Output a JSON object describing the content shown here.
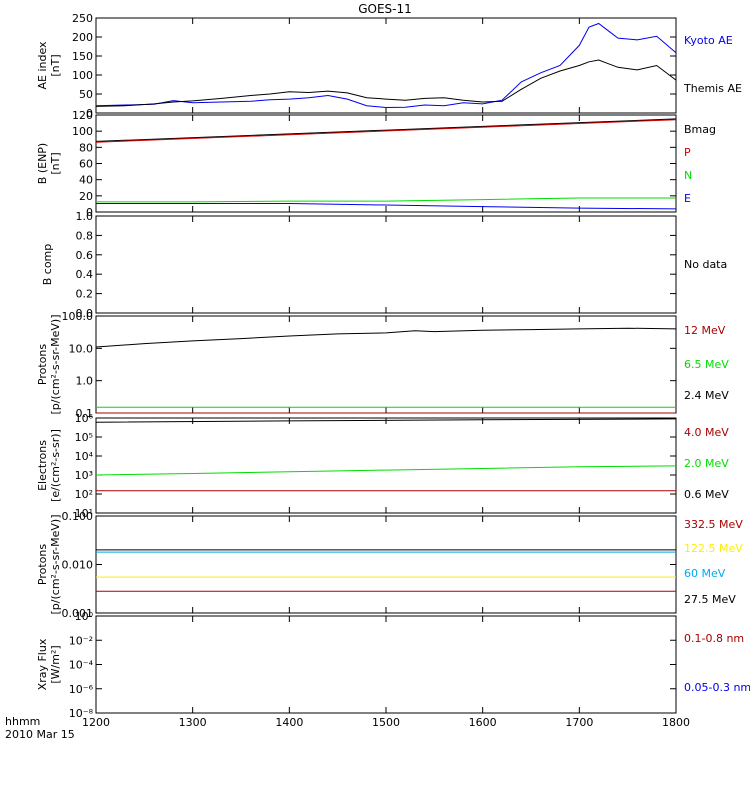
{
  "title": "GOES-11",
  "footer": {
    "time_label": "hhmm",
    "date_label": "2010 Mar 15"
  },
  "x_axis": {
    "min": 1200,
    "max": 1800,
    "ticks": [
      "1200",
      "1300",
      "1400",
      "1500",
      "1600",
      "1700",
      "1800"
    ]
  },
  "chart_data": [
    {
      "type": "line",
      "ylabel": [
        "AE index",
        "[nT]"
      ],
      "ylim": [
        0,
        260
      ],
      "yticks": [
        "0",
        "50",
        "100",
        "150",
        "200",
        "250"
      ],
      "series": [
        {
          "name": "Kyoto AE",
          "color": "#0000ee",
          "x": [
            1200,
            1230,
            1260,
            1280,
            1300,
            1330,
            1360,
            1380,
            1400,
            1420,
            1440,
            1460,
            1480,
            1500,
            1520,
            1540,
            1560,
            1580,
            1600,
            1620,
            1640,
            1660,
            1680,
            1700,
            1710,
            1720,
            1730,
            1740,
            1760,
            1780,
            1800
          ],
          "y": [
            20,
            22,
            24,
            34,
            28,
            30,
            32,
            36,
            38,
            42,
            48,
            38,
            20,
            15,
            16,
            22,
            20,
            28,
            25,
            35,
            85,
            110,
            130,
            185,
            235,
            245,
            225,
            205,
            200,
            210,
            165
          ]
        },
        {
          "name": "Themis AE",
          "color": "#000000",
          "x": [
            1200,
            1230,
            1260,
            1280,
            1300,
            1330,
            1360,
            1380,
            1400,
            1420,
            1440,
            1460,
            1480,
            1500,
            1520,
            1540,
            1560,
            1580,
            1600,
            1620,
            1640,
            1660,
            1680,
            1700,
            1710,
            1720,
            1730,
            1740,
            1760,
            1780,
            1800
          ],
          "y": [
            18,
            20,
            25,
            30,
            33,
            40,
            48,
            52,
            58,
            56,
            60,
            55,
            42,
            38,
            35,
            40,
            42,
            35,
            30,
            32,
            65,
            95,
            115,
            130,
            140,
            145,
            135,
            125,
            118,
            130,
            90
          ]
        }
      ]
    },
    {
      "type": "line",
      "ylabel": [
        "B (ENP)",
        "[nT]"
      ],
      "ylim": [
        0,
        125
      ],
      "yticks": [
        "0",
        "20",
        "40",
        "60",
        "80",
        "100",
        "120"
      ],
      "series": [
        {
          "name": "Bmag",
          "color": "#000000",
          "x": [
            1200,
            1800
          ],
          "y": [
            91,
            120
          ]
        },
        {
          "name": "P",
          "color": "#cc0000",
          "x": [
            1200,
            1800
          ],
          "y": [
            90,
            119
          ]
        },
        {
          "name": "N",
          "color": "#00dd00",
          "x": [
            1200,
            1300,
            1400,
            1500,
            1600,
            1700,
            1800
          ],
          "y": [
            13,
            13,
            14,
            14,
            16,
            18,
            18
          ]
        },
        {
          "name": "E",
          "color": "#0000ee",
          "x": [
            1200,
            1300,
            1400,
            1500,
            1600,
            1700,
            1800
          ],
          "y": [
            11,
            11,
            11,
            9,
            7,
            5,
            4
          ]
        }
      ]
    },
    {
      "type": "line",
      "ylabel": [
        "B comp"
      ],
      "ylim": [
        0,
        1
      ],
      "yticks": [
        "0.0",
        "0.2",
        "0.4",
        "0.6",
        "0.8",
        "1.0"
      ],
      "legend_text": "No data",
      "series": []
    },
    {
      "type": "line",
      "scale": "log",
      "ylabel": [
        "Protons",
        "[p/(cm²-s-sr-MeV)]"
      ],
      "ylim": [
        0.1,
        100
      ],
      "yticks": [
        "0.1",
        "1.0",
        "10.0",
        "100.0"
      ],
      "series": [
        {
          "name": "12 MeV",
          "color": "#aa0000",
          "x": [
            1200,
            1800
          ],
          "y": [
            0.1,
            0.1
          ]
        },
        {
          "name": "6.5 MeV",
          "color": "#00dd00",
          "x": [
            1200,
            1800
          ],
          "y": [
            0.15,
            0.15
          ]
        },
        {
          "name": "2.4 MeV",
          "color": "#000000",
          "x": [
            1200,
            1250,
            1300,
            1350,
            1400,
            1450,
            1500,
            1530,
            1550,
            1600,
            1650,
            1700,
            1750,
            1800
          ],
          "y": [
            11,
            14,
            17,
            20,
            24,
            28,
            30,
            35,
            33,
            36,
            38,
            40,
            42,
            40
          ]
        }
      ]
    },
    {
      "type": "line",
      "scale": "log",
      "ylabel": [
        "Electrons",
        "[e/(cm²-s-sr)]"
      ],
      "ylim": [
        10,
        1000000
      ],
      "yticks": [
        "10¹",
        "10²",
        "10³",
        "10⁴",
        "10⁵",
        "10⁶"
      ],
      "series": [
        {
          "name": "4.0 MeV",
          "color": "#aa0000",
          "x": [
            1200,
            1800
          ],
          "y": [
            150,
            150
          ]
        },
        {
          "name": "2.0 MeV",
          "color": "#00dd00",
          "x": [
            1200,
            1300,
            1400,
            1500,
            1600,
            1700,
            1800
          ],
          "y": [
            1000,
            1200,
            1500,
            1800,
            2200,
            2700,
            3000
          ]
        },
        {
          "name": "0.6 MeV",
          "color": "#000000",
          "x": [
            1200,
            1400,
            1600,
            1800
          ],
          "y": [
            600000,
            700000,
            800000,
            900000
          ]
        }
      ]
    },
    {
      "type": "line",
      "scale": "log",
      "ylabel": [
        "Protons",
        "[p/(cm²-s-sr-MeV)]"
      ],
      "ylim": [
        0.001,
        0.1
      ],
      "yticks": [
        "0.001",
        "0.010",
        "0.100"
      ],
      "series": [
        {
          "name": "332.5 MeV",
          "color": "#aa0000",
          "x": [
            1200,
            1800
          ],
          "y": [
            0.0028,
            0.0028
          ]
        },
        {
          "name": "122.5 MeV",
          "color": "#ffee00",
          "x": [
            1200,
            1800
          ],
          "y": [
            0.0055,
            0.0055
          ]
        },
        {
          "name": "60 MeV",
          "color": "#00aaee",
          "x": [
            1200,
            1800
          ],
          "y": [
            0.018,
            0.018
          ]
        },
        {
          "name": "27.5 MeV",
          "color": "#000000",
          "x": [
            1200,
            1800
          ],
          "y": [
            0.02,
            0.02
          ]
        }
      ]
    },
    {
      "type": "line",
      "scale": "log",
      "ylabel": [
        "Xray Flux",
        "[W/m²]"
      ],
      "ylim": [
        1e-09,
        1
      ],
      "yticks": [
        "10⁻⁸",
        "10⁻⁶",
        "10⁻⁴",
        "10⁻²",
        "10⁰"
      ],
      "series": [
        {
          "name": "0.1-0.8 nm",
          "color": "#aa0000",
          "x": [],
          "y": []
        },
        {
          "name": "0.05-0.3 nm",
          "color": "#0000ee",
          "x": [],
          "y": []
        }
      ]
    }
  ]
}
